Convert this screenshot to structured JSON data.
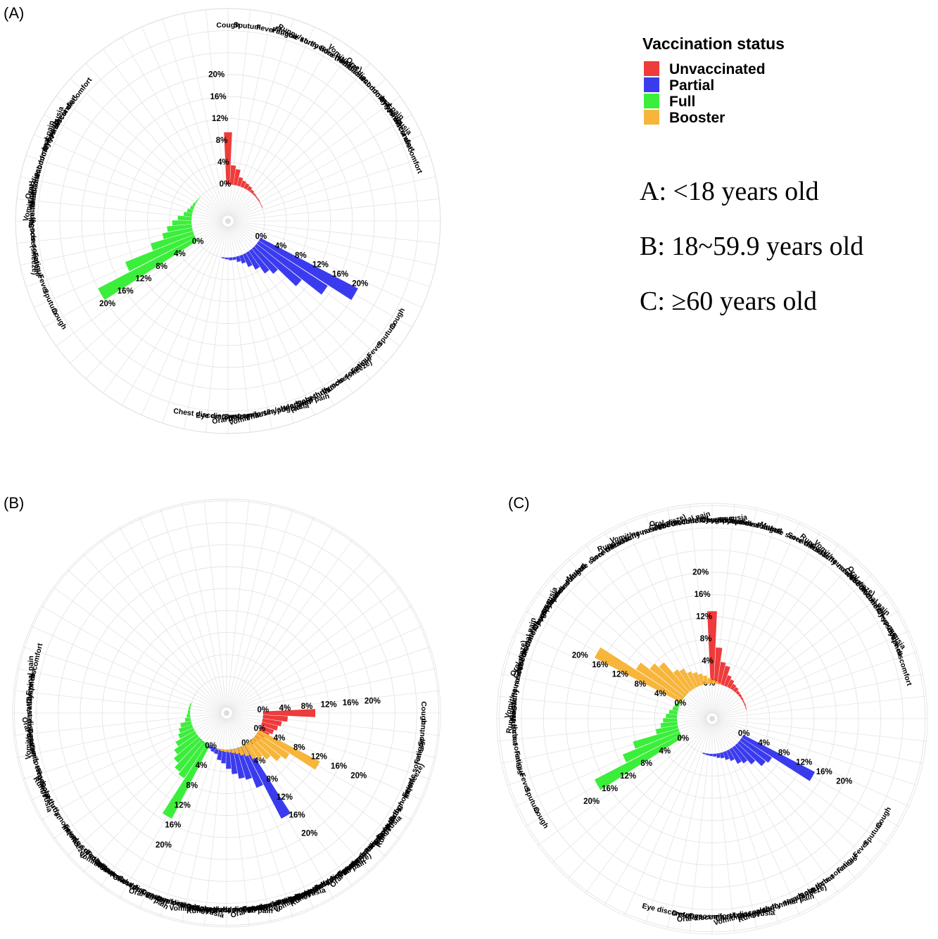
{
  "legend": {
    "title": "Vaccination status",
    "items": [
      {
        "label": "Unvaccinated",
        "color": "#ee3b3b"
      },
      {
        "label": "Partial",
        "color": "#3b3bee"
      },
      {
        "label": "Full",
        "color": "#3bee3b"
      },
      {
        "label": "Booster",
        "color": "#f7b53b"
      }
    ]
  },
  "notes": [
    "A: <18 years old",
    "B: 18~59.9 years old",
    "C: ≥60 years old"
  ],
  "tick_labels": [
    "0%",
    "4%",
    "8%",
    "12%",
    "16%",
    "20%"
  ],
  "chart_data": [
    {
      "type": "bar",
      "panel": "(A)",
      "categories": [
        "Cough",
        "Sputum",
        "Fever",
        "Fatigue",
        "Muscle soreness",
        "Runny/stuffy nose(sneeze)",
        "Sore throat",
        "Headache",
        "Vomit/nausea/abdominal pain",
        "Oral discomfort/hypogeusia",
        "Dysosmia",
        "Eye discomfort",
        "Chest discomfort"
      ],
      "series": [
        {
          "color": "#ee3b3b",
          "values": [
            9.5,
            3.5,
            2.9,
            1.6,
            1.2,
            1.0,
            0.8,
            0.5,
            0.3,
            0.2,
            0.2,
            0.1,
            0.1
          ]
        },
        {
          "color": "#3b3bee",
          "values": [
            20.0,
            15.0,
            10.5,
            6.0,
            5.0,
            3.5,
            2.5,
            1.5,
            1.0,
            0.5,
            0.5,
            0.3,
            0.2
          ]
        },
        {
          "color": "#3bee3b",
          "values": [
            20.0,
            13.5,
            8.0,
            5.5,
            4.5,
            3.5,
            2.5,
            1.5,
            1.0,
            0.6,
            0.4,
            0.2,
            0.1
          ]
        }
      ],
      "ylim": [
        0,
        20
      ]
    },
    {
      "type": "bar",
      "panel": "(B)",
      "categories": [
        "Cough",
        "Sputum",
        "Fatigue",
        "Muscle soreness",
        "Fever",
        "Runny/stuffy nose(sneeze)",
        "Sore throat",
        "Headache",
        "Oral discomfort/hypogeusia",
        "Dysosmia",
        "Chest discomfort",
        "Vomit/nausea/abdominal pain",
        "Dyspnea",
        "Eye discomfort"
      ],
      "series": [
        {
          "color": "#ee3b3b",
          "values": [
            9.5,
            4.5,
            3.5,
            3.0,
            2.5,
            2.0,
            1.5,
            1.0,
            0.8,
            0.5,
            0.4,
            0.3,
            0.2,
            0.1
          ]
        },
        {
          "color": "#3b3bee",
          "values": [
            15.0,
            8.0,
            6.0,
            5.5,
            4.5,
            3.5,
            2.5,
            2.0,
            1.0,
            0.8,
            0.5,
            0.4,
            0.3,
            0.2
          ]
        },
        {
          "color": "#3bee3b",
          "values": [
            15.0,
            7.5,
            7.0,
            6.0,
            5.0,
            4.0,
            3.0,
            2.5,
            2.0,
            1.0,
            0.6,
            0.4,
            0.3,
            0.2
          ]
        },
        {
          "color": "#f7b53b",
          "values": [
            12.5,
            7.0,
            6.0,
            4.5,
            3.5,
            3.0,
            2.0,
            1.5,
            1.0,
            0.7,
            0.5,
            0.4,
            0.3,
            0.2
          ]
        }
      ],
      "ylim": [
        0,
        20
      ]
    },
    {
      "type": "bar",
      "panel": "(C)",
      "categories": [
        "Cough",
        "Sputum",
        "Fever",
        "Fatigue",
        "Muscle soreness",
        "Sore throat",
        "Headache",
        "Runny/stuffy nose(sneeze)",
        "Vomit/nausea/abdominal pain",
        "Chest discomfort",
        "Oral discomfort/hypogeusia",
        "Dysosmia",
        "Dyspnea",
        "Eye discomfort"
      ],
      "series": [
        {
          "color": "#ee3b3b",
          "values": [
            13.0,
            6.5,
            4.0,
            3.5,
            2.0,
            1.5,
            1.0,
            0.8,
            0.5,
            0.4,
            0.3,
            0.2,
            0.2,
            0.1
          ]
        },
        {
          "color": "#3b3bee",
          "values": [
            14.5,
            6.5,
            6.0,
            4.5,
            3.5,
            3.0,
            2.0,
            1.5,
            1.0,
            0.8,
            0.5,
            0.4,
            0.3,
            0.2
          ]
        },
        {
          "color": "#3bee3b",
          "values": [
            17.5,
            11.0,
            8.5,
            4.0,
            3.0,
            2.5,
            2.0,
            1.5,
            1.0,
            0.8,
            0.5,
            0.4,
            0.3,
            0.2
          ]
        },
        {
          "color": "#f7b53b",
          "values": [
            17.5,
            10.0,
            8.0,
            7.0,
            4.5,
            4.0,
            3.0,
            2.5,
            2.0,
            1.5,
            1.0,
            0.6,
            0.4,
            0.2
          ]
        }
      ],
      "ylim": [
        0,
        20
      ]
    }
  ]
}
